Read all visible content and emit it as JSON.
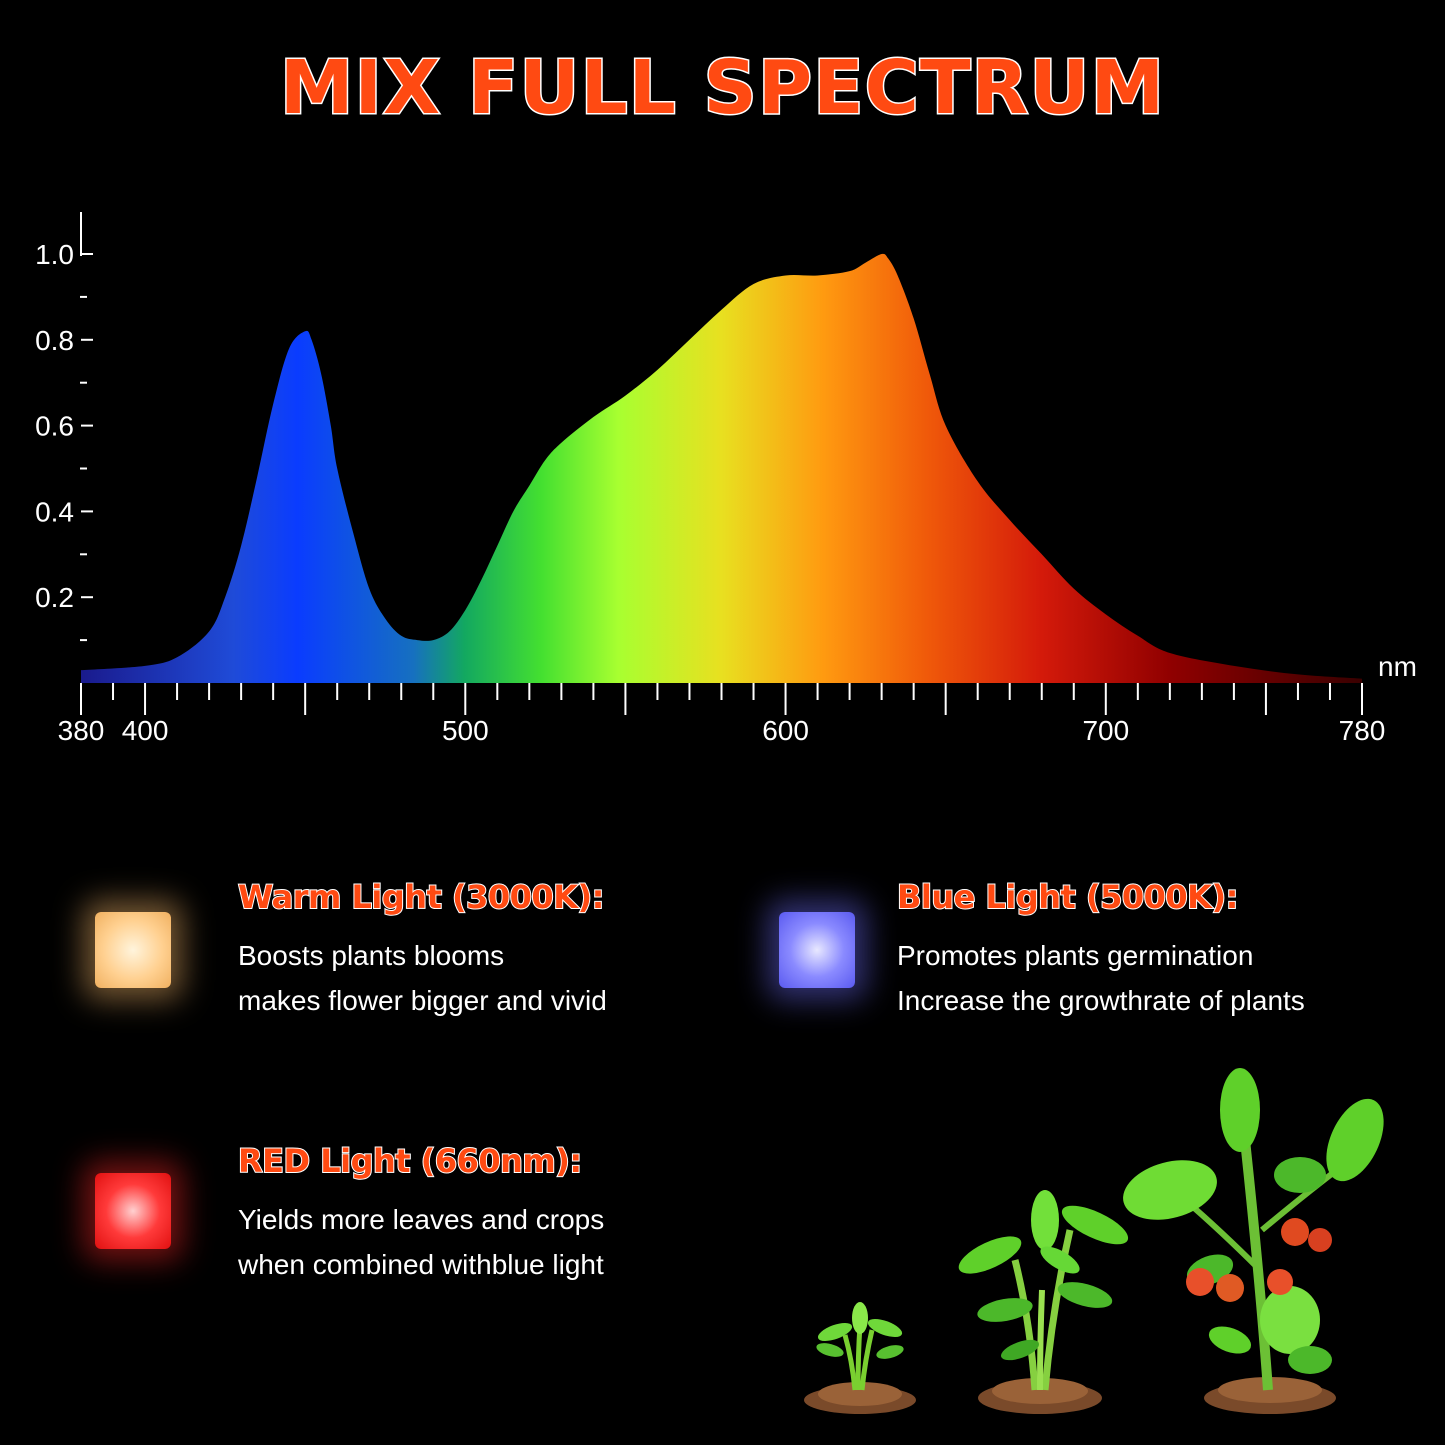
{
  "title": "MIX FULL SPECTRUM",
  "chart_data": {
    "type": "area",
    "x_unit": "nm",
    "xlim": [
      380,
      780
    ],
    "ylim": [
      0,
      1.1
    ],
    "x_ticks": [
      380,
      400,
      500,
      600,
      700,
      780
    ],
    "y_ticks": [
      "1.0",
      "0.8",
      "0.6",
      "0.4",
      "0.2"
    ],
    "y_tick_values": [
      1.0,
      0.8,
      0.6,
      0.4,
      0.2
    ],
    "grid": false,
    "x": [
      380,
      400,
      410,
      420,
      425,
      430,
      435,
      440,
      445,
      450,
      452,
      455,
      458,
      460,
      465,
      470,
      475,
      480,
      485,
      490,
      495,
      500,
      505,
      510,
      515,
      520,
      525,
      530,
      540,
      550,
      560,
      570,
      580,
      590,
      600,
      610,
      620,
      625,
      630,
      632,
      635,
      640,
      645,
      650,
      660,
      670,
      680,
      690,
      700,
      710,
      720,
      740,
      760,
      780
    ],
    "y": [
      0.03,
      0.04,
      0.06,
      0.12,
      0.2,
      0.32,
      0.48,
      0.65,
      0.78,
      0.82,
      0.8,
      0.72,
      0.6,
      0.5,
      0.35,
      0.22,
      0.15,
      0.11,
      0.1,
      0.1,
      0.12,
      0.17,
      0.24,
      0.32,
      0.4,
      0.46,
      0.52,
      0.56,
      0.62,
      0.67,
      0.73,
      0.8,
      0.87,
      0.93,
      0.95,
      0.95,
      0.96,
      0.98,
      1.0,
      0.99,
      0.95,
      0.85,
      0.72,
      0.6,
      0.47,
      0.38,
      0.3,
      0.22,
      0.16,
      0.11,
      0.07,
      0.04,
      0.02,
      0.01
    ]
  },
  "legend": {
    "warm": {
      "title": "Warm Light (3000K):",
      "line1": "Boosts plants blooms",
      "line2": "makes flower bigger and vivid",
      "color": "#ffd9a0"
    },
    "blue": {
      "title": "Blue Light (5000K):",
      "line1": "Promotes plants germination",
      "line2": "Increase the growthrate of plants",
      "color": "#a0a0ff"
    },
    "red": {
      "title": "RED Light (660nm):",
      "line1": "Yields more leaves and crops",
      "line2": "when combined withblue light",
      "color": "#ff3030"
    }
  },
  "illustration": "plant-growth-stages"
}
